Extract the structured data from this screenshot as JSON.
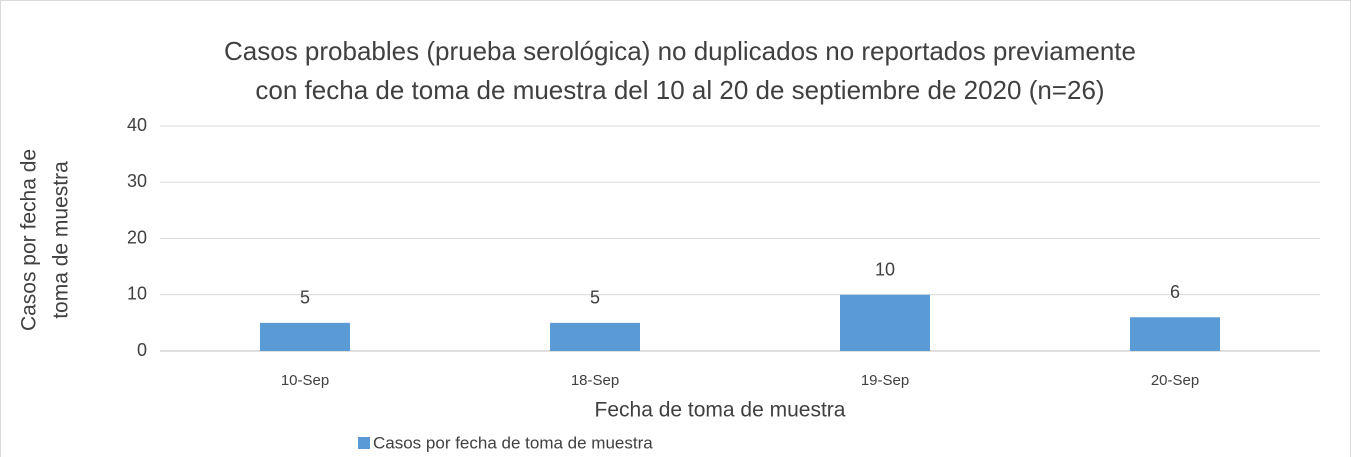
{
  "chart_data": {
    "type": "bar",
    "title": [
      "Casos probables (prueba serológica) no duplicados no reportados previamente",
      "con fecha de toma de muestra del 10 al 20 de septiembre de 2020 (n=26)"
    ],
    "x_label": "Fecha de toma de muestra",
    "y_label": [
      "Casos por fecha de",
      "toma de muestra"
    ],
    "categories": [
      "10-Sep",
      "18-Sep",
      "19-Sep",
      "20-Sep"
    ],
    "series": [
      {
        "name": "Casos por fecha de toma de muestra",
        "color": "#5b9bd5",
        "values": [
          5,
          5,
          10,
          6
        ]
      }
    ],
    "ylim": [
      0,
      40
    ],
    "yticks": [
      0,
      10,
      20,
      30,
      40
    ],
    "grid": true,
    "legend": "bottom"
  }
}
